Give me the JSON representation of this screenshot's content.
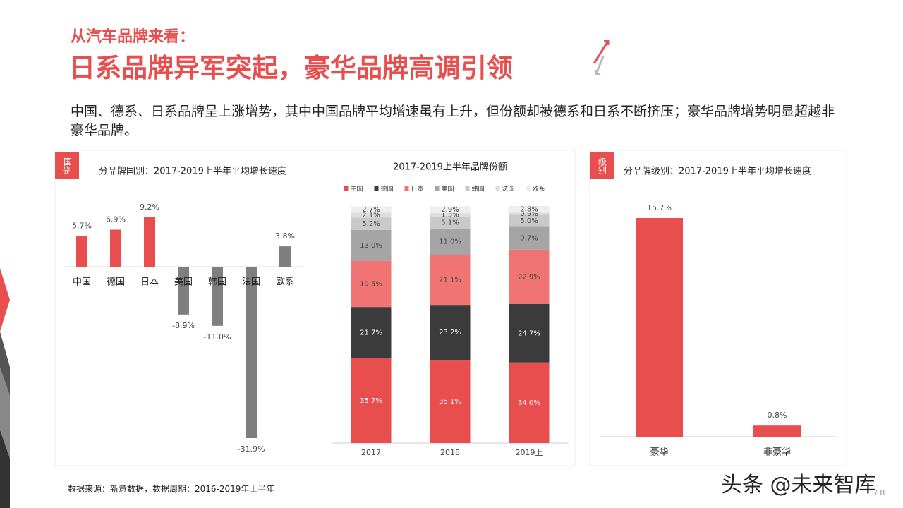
{
  "header": {
    "subtitle": "从汽车品牌来看：",
    "title": "日系品牌异军突起，豪华品牌高调引领"
  },
  "description": "中国、德系、日系品牌呈上涨增势，其中中国品牌平均增速虽有上升，但份额却被德系和日系不断挤压；豪华品牌增势明显超越非豪华品牌。",
  "source": "数据来源：新意数据，数据周期：2016-2019年上半年",
  "watermark": "头条 @未来智库",
  "page": "/ 8",
  "chart_data": [
    {
      "type": "bar",
      "tag": "国别",
      "title": "分品牌国别：2017-2019上半年平均增长速度",
      "categories": [
        "中国",
        "德国",
        "日本",
        "美国",
        "韩国",
        "法国",
        "欧系"
      ],
      "values": [
        5.7,
        6.9,
        9.2,
        -8.9,
        -11.0,
        -31.9,
        3.8
      ],
      "value_labels": [
        "5.7%",
        "6.9%",
        "9.2%",
        "-8.9%",
        "-11.0%",
        "-31.9%",
        "3.8%"
      ],
      "colors": [
        "#e94e4e",
        "#e94e4e",
        "#e94e4e",
        "#7f7f7f",
        "#7f7f7f",
        "#7f7f7f",
        "#7f7f7f"
      ]
    },
    {
      "type": "stacked-bar",
      "title": "2017-2019上半年品牌份额",
      "categories": [
        "2017",
        "2018",
        "2019上"
      ],
      "series": [
        {
          "name": "中国",
          "color": "#e94e4e",
          "values": [
            35.7,
            35.1,
            34.0
          ],
          "value_labels": [
            "35.7%",
            "35.1%",
            "34.0%"
          ]
        },
        {
          "name": "德国",
          "color": "#3b3b3b",
          "values": [
            21.7,
            23.2,
            24.7
          ],
          "value_labels": [
            "21.7%",
            "23.2%",
            "24.7%"
          ]
        },
        {
          "name": "日本",
          "color": "#f07474",
          "values": [
            19.5,
            21.1,
            22.9
          ],
          "value_labels": [
            "19.5%",
            "21.1%",
            "22.9%"
          ]
        },
        {
          "name": "美国",
          "color": "#a5a5a5",
          "values": [
            13.0,
            11.0,
            9.7
          ],
          "value_labels": [
            "13.0%",
            "11.0%",
            "9.7%"
          ]
        },
        {
          "name": "韩国",
          "color": "#c9c9c9",
          "values": [
            5.2,
            5.1,
            5.0
          ],
          "value_labels": [
            "5.2%",
            "5.1%",
            "5.0%"
          ]
        },
        {
          "name": "法国",
          "color": "#dddddd",
          "values": [
            2.1,
            1.5,
            0.9
          ],
          "value_labels": [
            "2.1%",
            "1.5%",
            "0.9%"
          ]
        },
        {
          "name": "欧系",
          "color": "#eeeeee",
          "values": [
            2.7,
            2.9,
            2.8
          ],
          "value_labels": [
            "2.7%",
            "2.9%",
            "2.8%"
          ]
        }
      ]
    },
    {
      "type": "bar",
      "tag": "级别",
      "title": "分品牌级别：2017-2019上半年平均增长速度",
      "categories": [
        "豪华",
        "非豪华"
      ],
      "values": [
        15.7,
        0.8
      ],
      "value_labels": [
        "15.7%",
        "0.8%"
      ],
      "colors": [
        "#e94e4e",
        "#e94e4e"
      ]
    }
  ]
}
